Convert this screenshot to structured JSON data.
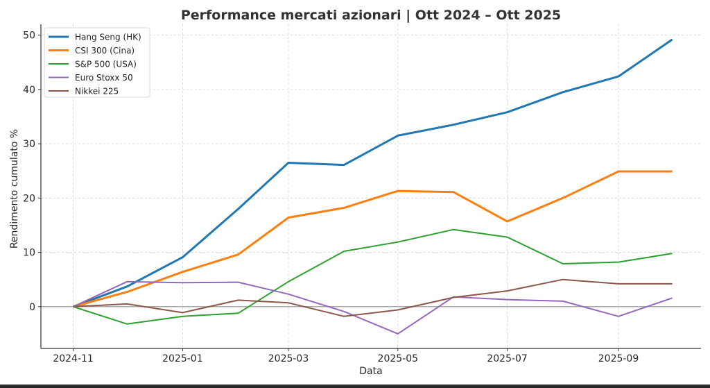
{
  "chart_data": {
    "type": "line",
    "title": "Performance mercati azionari | Ott 2024 – Ott 2025",
    "xlabel": "Data",
    "ylabel": "Rendimento cumulato %",
    "x": [
      "2024-11-01",
      "2024-12-01",
      "2025-01-01",
      "2025-02-01",
      "2025-03-01",
      "2025-04-01",
      "2025-05-01",
      "2025-06-01",
      "2025-07-01",
      "2025-08-01",
      "2025-09-01",
      "2025-10-01"
    ],
    "x_ticks": [
      "2024-11",
      "2025-01",
      "2025-03",
      "2025-05",
      "2025-07",
      "2025-09"
    ],
    "y_ticks": [
      0,
      10,
      20,
      30,
      40,
      50
    ],
    "ylim": [
      -7.7,
      52
    ],
    "xlim": [
      "2024-10-14",
      "2025-10-17"
    ],
    "grid": true,
    "zero_line": true,
    "legend_position": "top-left",
    "series": [
      {
        "name": "Hang Seng (HK)",
        "color": "#1f77b4",
        "width": "thick",
        "values": [
          0,
          3.7,
          9.1,
          18.0,
          26.5,
          26.1,
          31.5,
          33.5,
          35.8,
          39.5,
          42.4,
          49.2
        ]
      },
      {
        "name": "CSI 300 (Cina)",
        "color": "#ff7f0e",
        "width": "thick",
        "values": [
          0,
          2.7,
          6.4,
          9.6,
          16.4,
          18.2,
          21.3,
          21.1,
          15.7,
          20.0,
          24.9,
          24.9
        ]
      },
      {
        "name": "S&P 500 (USA)",
        "color": "#2ca02c",
        "width": "thin",
        "values": [
          0,
          -3.2,
          -1.8,
          -1.2,
          4.6,
          10.2,
          11.9,
          14.2,
          12.8,
          7.9,
          8.2,
          9.8
        ]
      },
      {
        "name": "Euro Stoxx 50",
        "color": "#9467bd",
        "width": "thin",
        "values": [
          0,
          4.6,
          4.4,
          4.5,
          2.3,
          -0.9,
          -5.0,
          1.8,
          1.3,
          1.0,
          -1.8,
          1.6
        ]
      },
      {
        "name": "Nikkei 225",
        "color": "#8c564b",
        "width": "thin",
        "values": [
          0,
          0.5,
          -1.1,
          1.2,
          0.7,
          -1.8,
          -0.6,
          1.7,
          2.9,
          5.0,
          4.2,
          4.2
        ]
      }
    ]
  }
}
